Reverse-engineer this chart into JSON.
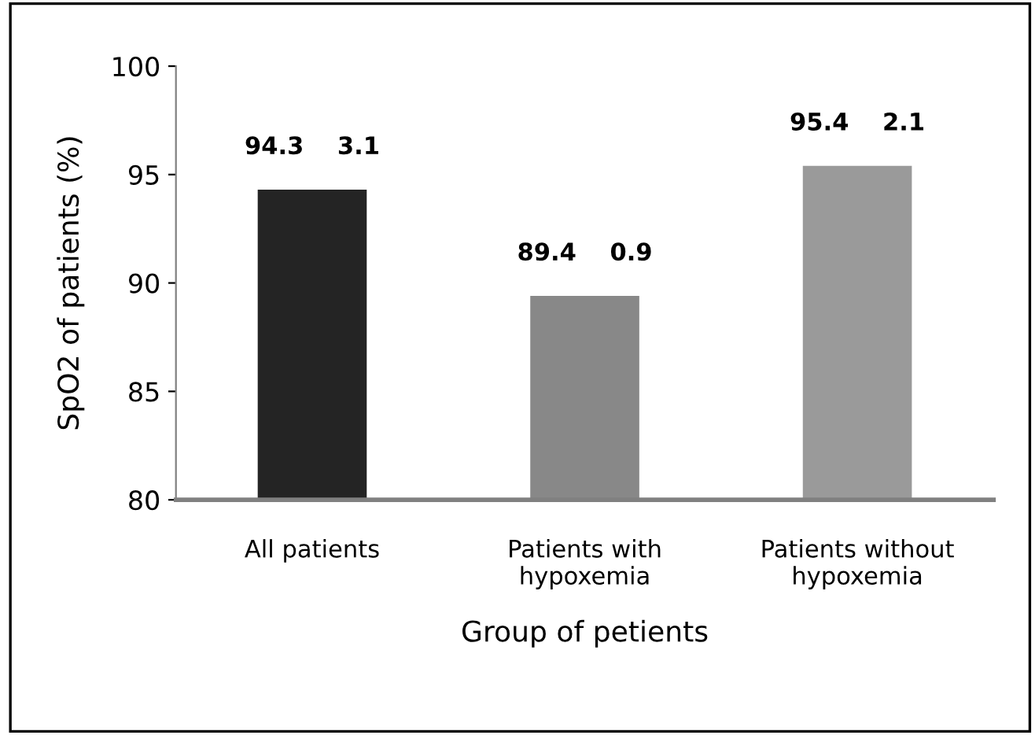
{
  "chart_data": {
    "type": "bar",
    "xlabel": "Group of petients",
    "ylabel": "SpO2 of patients (%)",
    "categories": [
      "All patients",
      "Patients with\nhypoxemia",
      "Patients without\nhypoxemia"
    ],
    "values": [
      94.3,
      89.4,
      95.4
    ],
    "colors": [
      "#242424",
      "#888888",
      "#9a9a9a"
    ],
    "value_labels": [
      "94.3    3.1",
      "89.4    0.9",
      "95.4    2.1"
    ],
    "ylim": [
      80,
      100
    ],
    "yticks": [
      80,
      85,
      90,
      95,
      100
    ],
    "grid": false,
    "legend": false
  }
}
